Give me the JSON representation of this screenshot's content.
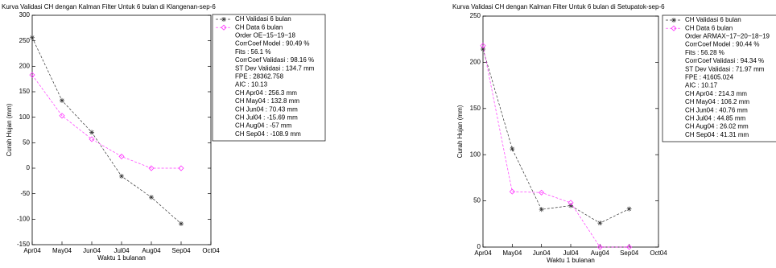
{
  "chart_data": [
    {
      "type": "line",
      "title": "Kurva Validasi CH dengan Kalman Filter Untuk 6 bulan di Klangenan-sep-6",
      "x_label": "Waktu 1 bulanan",
      "y_label": "Curah Hujan (mm)",
      "categories": [
        "Apr04",
        "May04",
        "Jun04",
        "Jul04",
        "Aug04",
        "Sep04",
        "Oct04"
      ],
      "ylim": [
        -150,
        300
      ],
      "yticks": [
        -150,
        -100,
        -50,
        0,
        50,
        100,
        150,
        200,
        250,
        300
      ],
      "series": [
        {
          "name": "CH Validasi 6 bulan",
          "color": "#333333",
          "marker": "star",
          "values": [
            256.3,
            132.8,
            70.43,
            -15.69,
            -57,
            -108.9,
            null
          ]
        },
        {
          "name": "CH Data 6 bulan",
          "color": "#ff33ff",
          "marker": "diamond",
          "values": [
            183,
            103,
            57,
            23,
            0,
            0,
            null
          ]
        }
      ],
      "legend_notes": [
        "Order OE~15~19~18",
        "CorrCoef Model : 90.49 %",
        "Fits : 56.1 %",
        "CorrCoef Validasi : 98.16 %",
        "ST Dev Validasi : 134.7 mm",
        "FPE : 28362.758",
        "AIC : 10.13",
        "CH Apr04 : 256.3 mm",
        "CH May04 : 132.8 mm",
        "CH Jun04 : 70.43 mm",
        "CH Jul04 : -15.69 mm",
        "CH Aug04 : -57 mm",
        "CH Sep04 : -108.9 mm"
      ]
    },
    {
      "type": "line",
      "title": "Kurva Validasi CH dengan Kalman Filter Untuk 6 bulan di Setupatok-sep-6",
      "x_label": "Waktu 1 bulanan",
      "y_label": "Curah Hujan (mm)",
      "categories": [
        "Apr04",
        "May04",
        "Jun04",
        "Jul04",
        "Aug04",
        "Sep04",
        "Oct04"
      ],
      "ylim": [
        0,
        250
      ],
      "yticks": [
        0,
        50,
        100,
        150,
        200,
        250
      ],
      "series": [
        {
          "name": "CH Validasi 6 bulan",
          "color": "#333333",
          "marker": "star",
          "values": [
            214.3,
            106.2,
            40.76,
            44.85,
            26.02,
            41.31,
            null
          ]
        },
        {
          "name": "CH Data 6 bulan",
          "color": "#ff33ff",
          "marker": "diamond",
          "values": [
            218,
            60,
            59,
            48,
            0,
            0,
            null
          ]
        }
      ],
      "legend_notes": [
        "Order ARMAX~17~20~18~19",
        "CorrCoef Model : 90.44 %",
        "Fits : 56.28 %",
        "CorrCoef Validasi : 94.34 %",
        "ST Dev Validasi : 71.97 mm",
        "FPE : 41605.024",
        "AIC : 10.17",
        "CH Apr04 : 214.3 mm",
        "CH May04 : 106.2 mm",
        "CH Jun04 : 40.76 mm",
        "CH Jul04 : 44.85 mm",
        "CH Aug04 : 26.02 mm",
        "CH Sep04 : 41.31 mm"
      ]
    }
  ]
}
